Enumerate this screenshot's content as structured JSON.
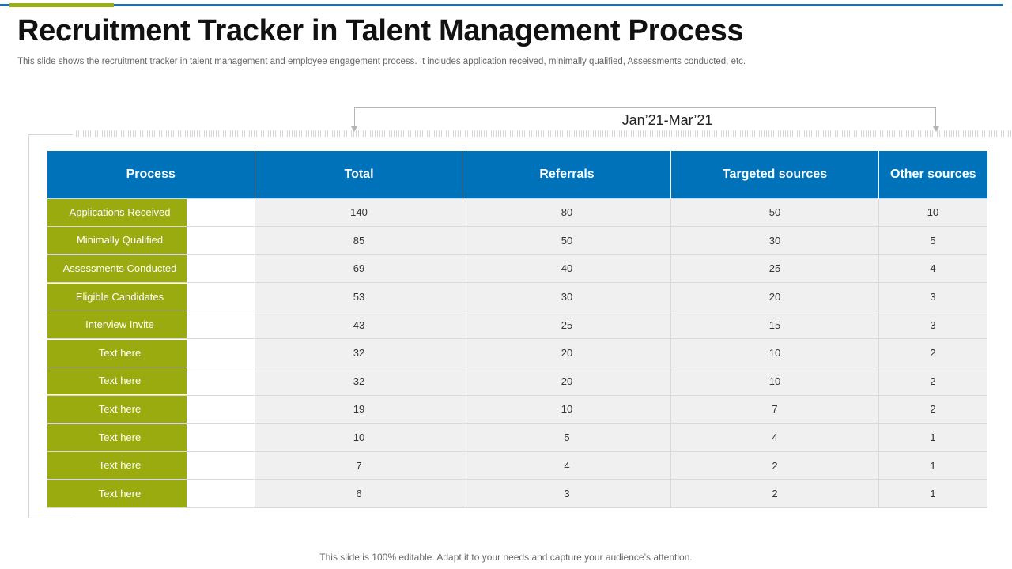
{
  "slide": {
    "title": "Recruitment Tracker in Talent Management Process",
    "subtitle": "This slide shows the recruitment tracker in talent management and employee engagement process. It includes application received, minimally qualified, Assessments conducted, etc.",
    "period_label": "Jan’21-Mar’21",
    "footer": "This slide is 100% editable. Adapt it to your needs and capture your audience’s attention."
  },
  "colors": {
    "header_blue": "#0072b9",
    "label_green": "#9aab10",
    "accent_line": "#1a6fb0"
  },
  "table": {
    "headers": [
      "Process",
      "Total",
      "Referrals",
      "Targeted sources",
      "Other  sources"
    ],
    "rows": [
      {
        "process": "Applications Received",
        "total": "140",
        "referrals": "80",
        "targeted": "50",
        "other": "10"
      },
      {
        "process": "Minimally Qualified",
        "total": "85",
        "referrals": "50",
        "targeted": "30",
        "other": "5"
      },
      {
        "process": "Assessments Conducted",
        "total": "69",
        "referrals": "40",
        "targeted": "25",
        "other": "4"
      },
      {
        "process": "Eligible Candidates",
        "total": "53",
        "referrals": "30",
        "targeted": "20",
        "other": "3"
      },
      {
        "process": "Interview  Invite",
        "total": "43",
        "referrals": "25",
        "targeted": "15",
        "other": "3"
      },
      {
        "process": "Text here",
        "total": "32",
        "referrals": "20",
        "targeted": "10",
        "other": "2"
      },
      {
        "process": "Text here",
        "total": "32",
        "referrals": "20",
        "targeted": "10",
        "other": "2"
      },
      {
        "process": "Text here",
        "total": "19",
        "referrals": "10",
        "targeted": "7",
        "other": "2"
      },
      {
        "process": "Text here",
        "total": "10",
        "referrals": "5",
        "targeted": "4",
        "other": "1"
      },
      {
        "process": "Text here",
        "total": "7",
        "referrals": "4",
        "targeted": "2",
        "other": "1"
      },
      {
        "process": "Text here",
        "total": "6",
        "referrals": "3",
        "targeted": "2",
        "other": "1"
      }
    ]
  }
}
